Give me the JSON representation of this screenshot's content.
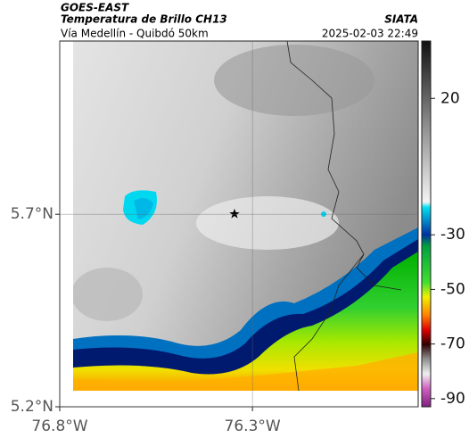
{
  "header": {
    "title": "GOES-EAST",
    "subtitle": "Temperatura de Brillo CH13",
    "source": "SIATA",
    "region": "Vía Medellín - Quibdó 50km",
    "timestamp": "2025-02-03 22:49"
  },
  "map": {
    "xlim": [
      -76.8,
      -75.87
    ],
    "ylim": [
      5.2,
      6.15
    ],
    "xticks": [
      {
        "value": -76.8,
        "label": "76.8°W"
      },
      {
        "value": -76.3,
        "label": "76.3°W"
      }
    ],
    "yticks": [
      {
        "value": 5.2,
        "label": "5.2°N"
      },
      {
        "value": 5.7,
        "label": "5.7°N"
      }
    ],
    "grid": true
  },
  "colorbar": {
    "lim": [
      -93,
      41
    ],
    "ticks": [
      20,
      -30,
      -50,
      -70,
      -90
    ]
  }
}
